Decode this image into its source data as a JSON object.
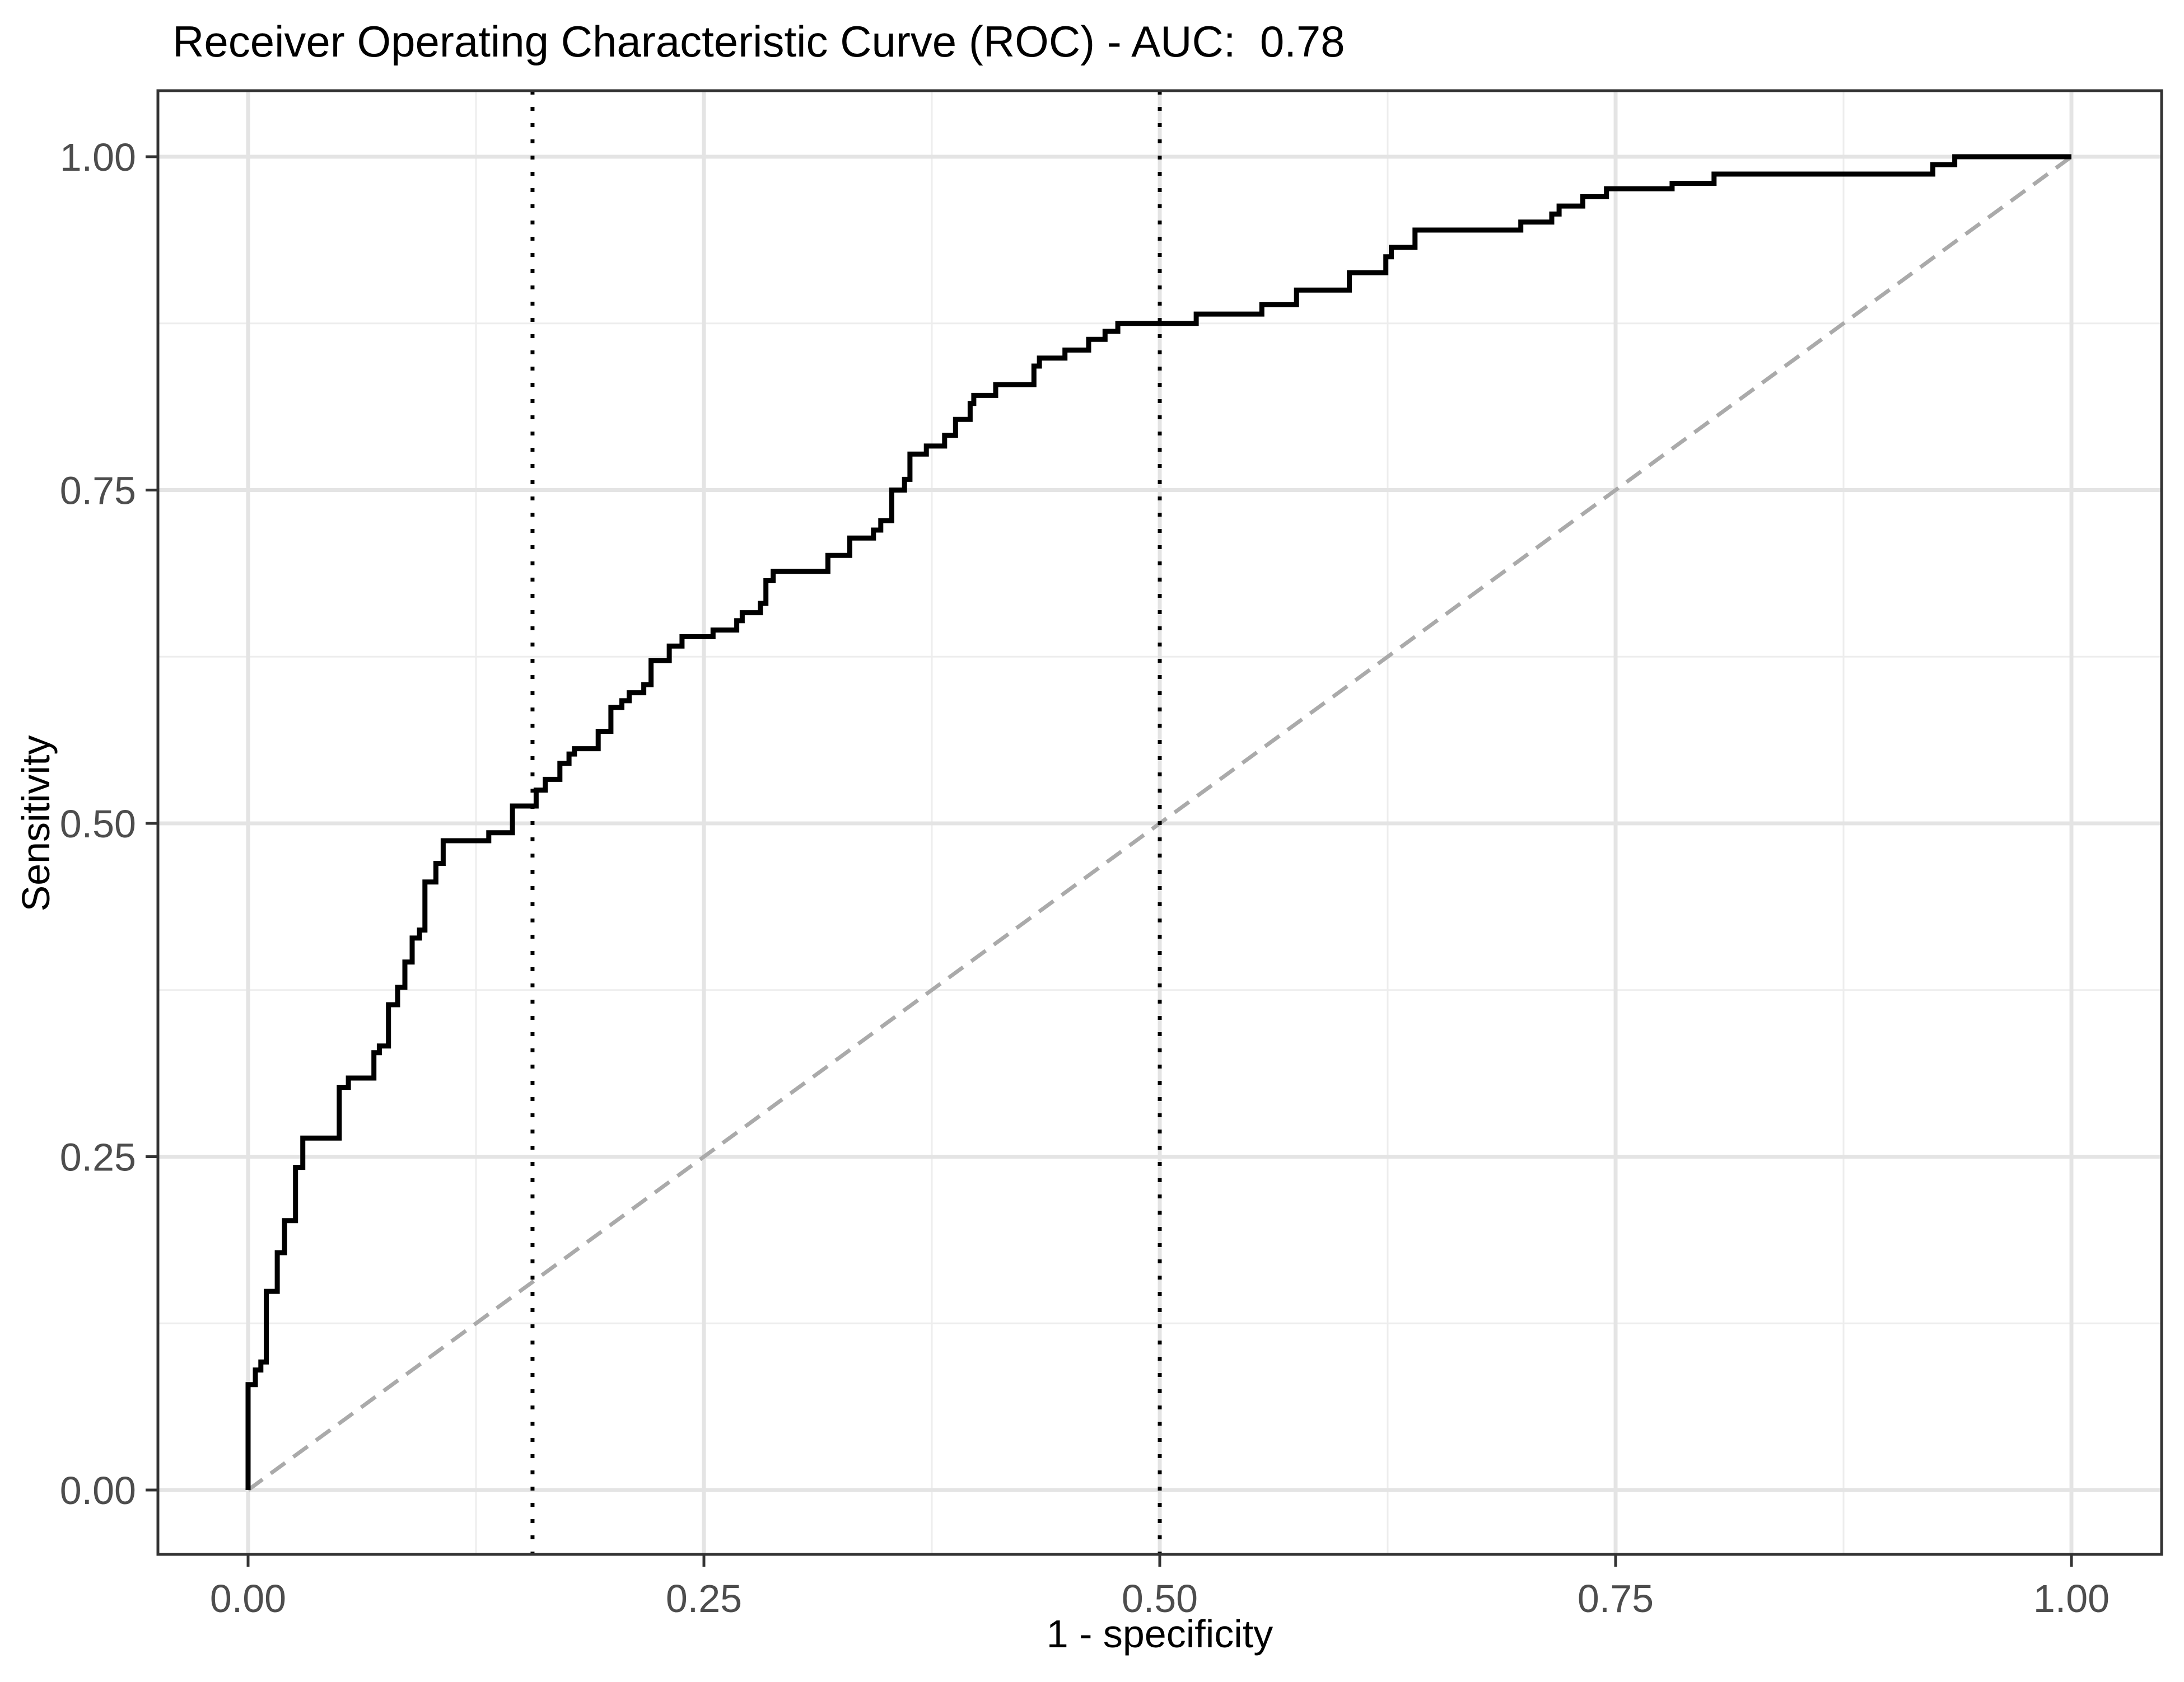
{
  "figure": {
    "title": "Receiver Operating Characteristic Curve (ROC) - AUC:  0.78"
  },
  "chart_data": {
    "type": "line",
    "subtype": "roc-step-curve",
    "title": "Receiver Operating Characteristic Curve (ROC) - AUC:  0.78",
    "auc": 0.78,
    "xlabel": "1 - specificity",
    "ylabel": "Sensitivity",
    "xlim": [
      0,
      1
    ],
    "ylim": [
      0,
      1
    ],
    "grid": "on",
    "legend_position": "none",
    "x_ticks": {
      "values": [
        0,
        0.25,
        0.5,
        0.75,
        1
      ],
      "labels": [
        "0.00",
        "0.25",
        "0.50",
        "0.75",
        "1.00"
      ]
    },
    "y_ticks": {
      "values": [
        0,
        0.25,
        0.5,
        0.75,
        1
      ],
      "labels": [
        "0.00",
        "0.25",
        "0.50",
        "0.75",
        "1.00"
      ]
    },
    "minor_grid_x": [
      0.125,
      0.375,
      0.625,
      0.875
    ],
    "minor_grid_y": [
      0.125,
      0.375,
      0.625,
      0.875
    ],
    "colors": {
      "curve": "#000000",
      "diagonal": "#AAAAAA",
      "vline": "#000000",
      "grid_major": "#E4E4E4",
      "grid_minor": "#EDEDED",
      "panel_border": "#333333",
      "tick_mark": "#333333",
      "tick_text": "#4D4D4D",
      "background": "#FFFFFF"
    },
    "reference_lines": {
      "diagonal": {
        "name": "chance-line",
        "style": "dashed",
        "from": [
          0,
          0
        ],
        "to": [
          1,
          1
        ]
      },
      "vlines": [
        {
          "name": "cutoff-line-1",
          "style": "dotted",
          "x": 0.156
        },
        {
          "name": "cutoff-line-2",
          "style": "dotted",
          "x": 0.5
        }
      ]
    },
    "series": [
      {
        "name": "ROC curve",
        "type": "step",
        "points": [
          [
            0.0,
            0.0
          ],
          [
            0.0,
            0.079
          ],
          [
            0.004,
            0.079
          ],
          [
            0.004,
            0.09
          ],
          [
            0.007,
            0.09
          ],
          [
            0.007,
            0.096
          ],
          [
            0.01,
            0.096
          ],
          [
            0.01,
            0.149
          ],
          [
            0.016,
            0.149
          ],
          [
            0.016,
            0.178
          ],
          [
            0.02,
            0.178
          ],
          [
            0.02,
            0.202
          ],
          [
            0.026,
            0.202
          ],
          [
            0.026,
            0.242
          ],
          [
            0.03,
            0.242
          ],
          [
            0.03,
            0.264
          ],
          [
            0.05,
            0.264
          ],
          [
            0.05,
            0.302
          ],
          [
            0.055,
            0.302
          ],
          [
            0.055,
            0.309
          ],
          [
            0.069,
            0.309
          ],
          [
            0.069,
            0.328
          ],
          [
            0.072,
            0.328
          ],
          [
            0.072,
            0.333
          ],
          [
            0.077,
            0.333
          ],
          [
            0.077,
            0.364
          ],
          [
            0.082,
            0.364
          ],
          [
            0.082,
            0.377
          ],
          [
            0.086,
            0.377
          ],
          [
            0.086,
            0.396
          ],
          [
            0.09,
            0.396
          ],
          [
            0.09,
            0.414
          ],
          [
            0.094,
            0.414
          ],
          [
            0.094,
            0.42
          ],
          [
            0.097,
            0.42
          ],
          [
            0.097,
            0.456
          ],
          [
            0.103,
            0.456
          ],
          [
            0.103,
            0.47
          ],
          [
            0.107,
            0.47
          ],
          [
            0.107,
            0.487
          ],
          [
            0.132,
            0.487
          ],
          [
            0.132,
            0.493
          ],
          [
            0.145,
            0.493
          ],
          [
            0.145,
            0.513
          ],
          [
            0.158,
            0.513
          ],
          [
            0.158,
            0.525
          ],
          [
            0.163,
            0.525
          ],
          [
            0.163,
            0.533
          ],
          [
            0.171,
            0.533
          ],
          [
            0.171,
            0.545
          ],
          [
            0.176,
            0.545
          ],
          [
            0.176,
            0.552
          ],
          [
            0.179,
            0.552
          ],
          [
            0.179,
            0.556
          ],
          [
            0.192,
            0.556
          ],
          [
            0.192,
            0.569
          ],
          [
            0.199,
            0.569
          ],
          [
            0.199,
            0.587
          ],
          [
            0.205,
            0.587
          ],
          [
            0.205,
            0.592
          ],
          [
            0.209,
            0.592
          ],
          [
            0.209,
            0.598
          ],
          [
            0.217,
            0.598
          ],
          [
            0.217,
            0.604
          ],
          [
            0.221,
            0.604
          ],
          [
            0.221,
            0.622
          ],
          [
            0.231,
            0.622
          ],
          [
            0.231,
            0.633
          ],
          [
            0.238,
            0.633
          ],
          [
            0.238,
            0.64
          ],
          [
            0.255,
            0.64
          ],
          [
            0.255,
            0.645
          ],
          [
            0.268,
            0.645
          ],
          [
            0.268,
            0.652
          ],
          [
            0.271,
            0.652
          ],
          [
            0.271,
            0.658
          ],
          [
            0.281,
            0.658
          ],
          [
            0.281,
            0.665
          ],
          [
            0.284,
            0.665
          ],
          [
            0.284,
            0.682
          ],
          [
            0.288,
            0.682
          ],
          [
            0.288,
            0.689
          ],
          [
            0.318,
            0.689
          ],
          [
            0.318,
            0.701
          ],
          [
            0.33,
            0.701
          ],
          [
            0.33,
            0.714
          ],
          [
            0.343,
            0.714
          ],
          [
            0.343,
            0.72
          ],
          [
            0.347,
            0.72
          ],
          [
            0.347,
            0.727
          ],
          [
            0.353,
            0.727
          ],
          [
            0.353,
            0.75
          ],
          [
            0.36,
            0.75
          ],
          [
            0.36,
            0.758
          ],
          [
            0.363,
            0.758
          ],
          [
            0.363,
            0.777
          ],
          [
            0.372,
            0.777
          ],
          [
            0.372,
            0.783
          ],
          [
            0.382,
            0.783
          ],
          [
            0.382,
            0.791
          ],
          [
            0.388,
            0.791
          ],
          [
            0.388,
            0.803
          ],
          [
            0.396,
            0.803
          ],
          [
            0.396,
            0.815
          ],
          [
            0.398,
            0.815
          ],
          [
            0.398,
            0.821
          ],
          [
            0.41,
            0.821
          ],
          [
            0.41,
            0.829
          ],
          [
            0.431,
            0.829
          ],
          [
            0.431,
            0.843
          ],
          [
            0.434,
            0.843
          ],
          [
            0.434,
            0.849
          ],
          [
            0.448,
            0.849
          ],
          [
            0.448,
            0.855
          ],
          [
            0.461,
            0.855
          ],
          [
            0.461,
            0.863
          ],
          [
            0.47,
            0.863
          ],
          [
            0.47,
            0.869
          ],
          [
            0.477,
            0.869
          ],
          [
            0.477,
            0.875
          ],
          [
            0.52,
            0.875
          ],
          [
            0.52,
            0.882
          ],
          [
            0.556,
            0.882
          ],
          [
            0.556,
            0.889
          ],
          [
            0.575,
            0.889
          ],
          [
            0.575,
            0.9
          ],
          [
            0.604,
            0.9
          ],
          [
            0.604,
            0.913
          ],
          [
            0.624,
            0.913
          ],
          [
            0.624,
            0.925
          ],
          [
            0.627,
            0.925
          ],
          [
            0.627,
            0.932
          ],
          [
            0.64,
            0.932
          ],
          [
            0.64,
            0.945
          ],
          [
            0.698,
            0.945
          ],
          [
            0.698,
            0.951
          ],
          [
            0.715,
            0.951
          ],
          [
            0.715,
            0.957
          ],
          [
            0.719,
            0.957
          ],
          [
            0.719,
            0.963
          ],
          [
            0.732,
            0.963
          ],
          [
            0.732,
            0.97
          ],
          [
            0.745,
            0.97
          ],
          [
            0.745,
            0.976
          ],
          [
            0.781,
            0.976
          ],
          [
            0.781,
            0.98
          ],
          [
            0.804,
            0.98
          ],
          [
            0.804,
            0.987
          ],
          [
            0.924,
            0.987
          ],
          [
            0.924,
            0.994
          ],
          [
            0.936,
            0.994
          ],
          [
            0.936,
            1.0
          ],
          [
            1.0,
            1.0
          ]
        ]
      }
    ]
  }
}
